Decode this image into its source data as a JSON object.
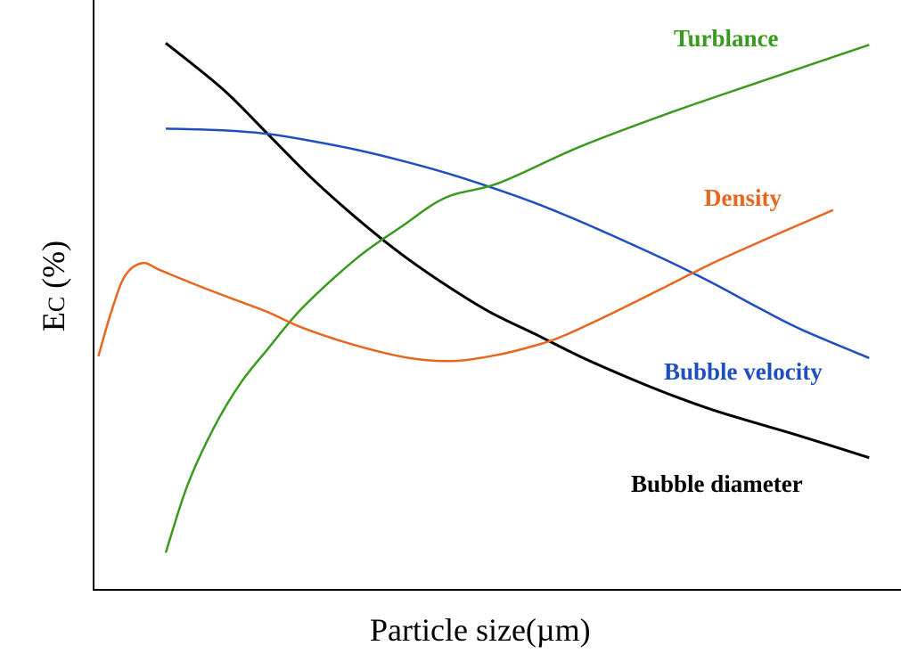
{
  "chart_data": {
    "type": "line",
    "title": "",
    "xlabel": "Particle size(µm)",
    "ylabel": "Ec (%)",
    "ylabel_main": "E",
    "ylabel_sub": "C",
    "ylabel_rest": " (%)",
    "xlim": [
      0,
      100
    ],
    "ylim": [
      0,
      100
    ],
    "grid": false,
    "ticks": "none",
    "series": [
      {
        "name": "Bubble diameter",
        "color": "#000000",
        "x": [
          9,
          16.1,
          21.7,
          27.2,
          32.8,
          38.3,
          43.9,
          49.4,
          55,
          60.6,
          66.1,
          71.7,
          77.2,
          82.8,
          88.3,
          96.7
        ],
        "y": [
          92.7,
          84.9,
          77.3,
          69.8,
          63,
          57,
          51.7,
          47.1,
          43.4,
          39.6,
          36.3,
          33.2,
          30.5,
          28.2,
          26,
          22.4
        ]
      },
      {
        "name": "Bubble velocity",
        "color": "#1f4fbf",
        "x": [
          9,
          16.1,
          21.7,
          27.2,
          32.8,
          38.3,
          43.9,
          49.4,
          55,
          60.6,
          66.1,
          71.7,
          77.2,
          82.8,
          88.3,
          96.7
        ],
        "y": [
          78.2,
          77.9,
          77.3,
          76.1,
          74.6,
          72.8,
          70.7,
          68.3,
          65.6,
          62.5,
          59.2,
          55.7,
          52,
          47.9,
          44.1,
          39.3
        ]
      },
      {
        "name": "Turblance",
        "color": "#3a9a1e",
        "x": [
          9,
          11.7,
          15,
          18.3,
          21.7,
          26.1,
          32.8,
          38.3,
          43.9,
          50.6,
          60.6,
          71.7,
          82.8,
          96.7
        ],
        "y": [
          6.3,
          17.7,
          27.5,
          35,
          40.8,
          47.9,
          56.2,
          61.5,
          66.5,
          69,
          75.1,
          80.8,
          86,
          92.4
        ]
      },
      {
        "name": "Density",
        "color": "#e8671e",
        "x": [
          0.6,
          2.2,
          3.9,
          6.1,
          8.3,
          12.8,
          17.2,
          21.7,
          26.1,
          32.8,
          39.4,
          45,
          50.6,
          55,
          58.3,
          63.9,
          70.6,
          77.2,
          83.9,
          92.2
        ],
        "y": [
          39.6,
          47.1,
          53.2,
          55.4,
          54.2,
          51.7,
          49.4,
          47.1,
          44.4,
          41.4,
          39.3,
          38.8,
          39.9,
          41.4,
          42.9,
          46.4,
          50.9,
          55.4,
          59.5,
          64.4
        ]
      }
    ]
  }
}
